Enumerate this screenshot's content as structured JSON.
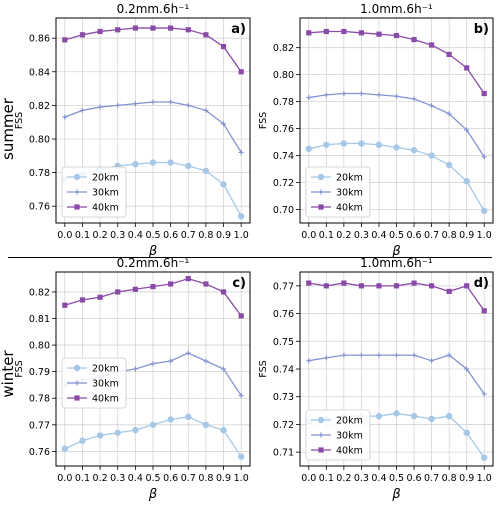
{
  "row_labels": [
    "summer",
    "winter"
  ],
  "chart_data": [
    {
      "type": "line",
      "panel_label": "a)",
      "title": "0.2mm.6h⁻¹",
      "xlabel": "β",
      "ylabel": "FSS",
      "x": [
        0.0,
        0.1,
        0.2,
        0.3,
        0.4,
        0.5,
        0.6,
        0.7,
        0.8,
        0.9,
        1.0
      ],
      "ylim": [
        0.75,
        0.872
      ],
      "yticks": [
        0.76,
        0.78,
        0.8,
        0.82,
        0.84,
        0.86
      ],
      "ytick_decimals": 2,
      "grid": true,
      "legend_position": "bottom-left",
      "series": [
        {
          "name": "20km",
          "color": "#a6c8e6",
          "marker": "circle",
          "values": [
            0.776,
            0.779,
            0.782,
            0.784,
            0.785,
            0.786,
            0.786,
            0.784,
            0.781,
            0.773,
            0.754
          ]
        },
        {
          "name": "30km",
          "color": "#8594cf",
          "marker": "plus",
          "values": [
            0.813,
            0.817,
            0.819,
            0.82,
            0.821,
            0.822,
            0.822,
            0.82,
            0.817,
            0.809,
            0.792
          ]
        },
        {
          "name": "40km",
          "color": "#8a4aa8",
          "marker": "square",
          "values": [
            0.859,
            0.862,
            0.864,
            0.865,
            0.866,
            0.866,
            0.866,
            0.865,
            0.862,
            0.855,
            0.84
          ]
        }
      ]
    },
    {
      "type": "line",
      "panel_label": "b)",
      "title": "1.0mm.6h⁻¹",
      "xlabel": "β",
      "ylabel": "FSS",
      "x": [
        0.0,
        0.1,
        0.2,
        0.3,
        0.4,
        0.5,
        0.6,
        0.7,
        0.8,
        0.9,
        1.0
      ],
      "ylim": [
        0.69,
        0.842
      ],
      "yticks": [
        0.7,
        0.72,
        0.74,
        0.76,
        0.78,
        0.8,
        0.82
      ],
      "ytick_decimals": 2,
      "grid": true,
      "legend_position": "bottom-left",
      "series": [
        {
          "name": "20km",
          "color": "#a6c8e6",
          "marker": "circle",
          "values": [
            0.745,
            0.748,
            0.749,
            0.749,
            0.748,
            0.746,
            0.744,
            0.74,
            0.733,
            0.721,
            0.699
          ]
        },
        {
          "name": "30km",
          "color": "#8594cf",
          "marker": "plus",
          "values": [
            0.783,
            0.785,
            0.786,
            0.786,
            0.785,
            0.784,
            0.782,
            0.777,
            0.771,
            0.759,
            0.739
          ]
        },
        {
          "name": "40km",
          "color": "#8a4aa8",
          "marker": "square",
          "values": [
            0.831,
            0.832,
            0.832,
            0.831,
            0.83,
            0.829,
            0.826,
            0.822,
            0.815,
            0.805,
            0.786
          ]
        }
      ]
    },
    {
      "type": "line",
      "panel_label": "c)",
      "title": "0.2mm.6h⁻¹",
      "xlabel": "β",
      "ylabel": "FSS",
      "x": [
        0.0,
        0.1,
        0.2,
        0.3,
        0.4,
        0.5,
        0.6,
        0.7,
        0.8,
        0.9,
        1.0
      ],
      "ylim": [
        0.7545,
        0.8275
      ],
      "yticks": [
        0.76,
        0.77,
        0.78,
        0.79,
        0.8,
        0.81,
        0.82
      ],
      "ytick_decimals": 2,
      "grid": true,
      "legend_position": "center-left",
      "series": [
        {
          "name": "20km",
          "color": "#a6c8e6",
          "marker": "circle",
          "values": [
            0.761,
            0.764,
            0.766,
            0.767,
            0.768,
            0.77,
            0.772,
            0.773,
            0.77,
            0.768,
            0.758
          ]
        },
        {
          "name": "30km",
          "color": "#8594cf",
          "marker": "plus",
          "values": [
            0.785,
            0.787,
            0.788,
            0.79,
            0.791,
            0.793,
            0.794,
            0.797,
            0.794,
            0.791,
            0.781
          ]
        },
        {
          "name": "40km",
          "color": "#8a4aa8",
          "marker": "square",
          "values": [
            0.815,
            0.817,
            0.818,
            0.82,
            0.821,
            0.822,
            0.823,
            0.825,
            0.823,
            0.82,
            0.811
          ]
        }
      ]
    },
    {
      "type": "line",
      "panel_label": "d)",
      "title": "1.0mm.6h⁻¹",
      "xlabel": "β",
      "ylabel": "FSS",
      "x": [
        0.0,
        0.1,
        0.2,
        0.3,
        0.4,
        0.5,
        0.6,
        0.7,
        0.8,
        0.9,
        1.0
      ],
      "ylim": [
        0.705,
        0.775
      ],
      "yticks": [
        0.71,
        0.72,
        0.73,
        0.74,
        0.75,
        0.76,
        0.77
      ],
      "ytick_decimals": 2,
      "grid": true,
      "legend_position": "bottom-left",
      "series": [
        {
          "name": "20km",
          "color": "#a6c8e6",
          "marker": "circle",
          "values": [
            0.721,
            0.722,
            0.723,
            0.723,
            0.723,
            0.724,
            0.723,
            0.722,
            0.723,
            0.717,
            0.708
          ]
        },
        {
          "name": "30km",
          "color": "#8594cf",
          "marker": "plus",
          "values": [
            0.743,
            0.744,
            0.745,
            0.745,
            0.745,
            0.745,
            0.745,
            0.743,
            0.745,
            0.74,
            0.731
          ]
        },
        {
          "name": "40km",
          "color": "#8a4aa8",
          "marker": "square",
          "values": [
            0.771,
            0.77,
            0.771,
            0.77,
            0.77,
            0.77,
            0.771,
            0.77,
            0.768,
            0.77,
            0.761
          ]
        }
      ]
    }
  ]
}
